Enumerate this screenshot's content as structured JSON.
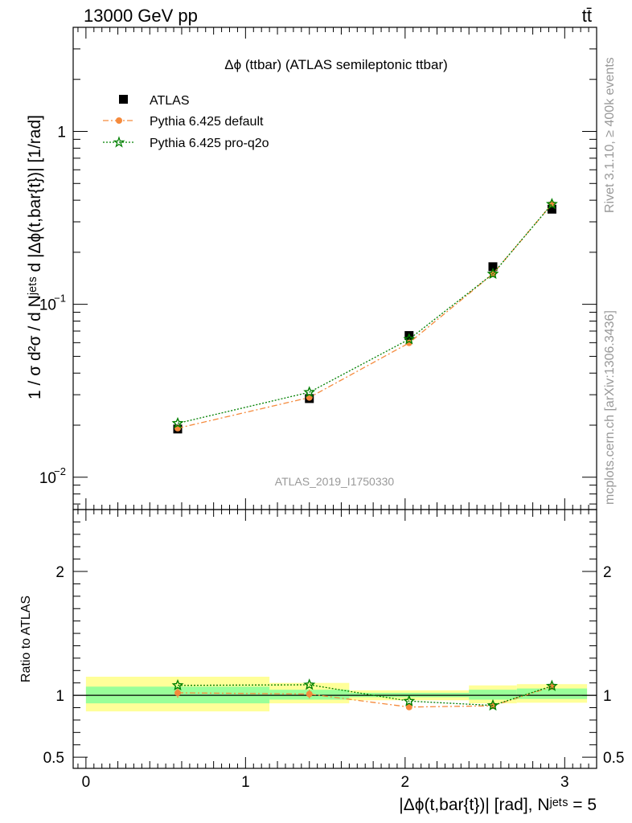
{
  "header": {
    "energy_label": "13000 GeV pp",
    "process_label": "tt̄"
  },
  "side_labels": {
    "rivet": "Rivet 3.1.10, ≥ 400k events",
    "mcplots": "mcplots.cern.ch [arXiv:1306.3436]"
  },
  "chart_data": [
    {
      "type": "scatter",
      "title": "Δϕ (ttbar) (ATLAS semileptonic ttbar)",
      "watermark": "ATLAS_2019_I1750330",
      "ylabel": "1 / σ d²σ / d Nʲᵉᵗˢ d |Δϕ(t,bar{t})| [1/rad]",
      "yscale": "log",
      "ylim": [
        0.0065,
        4.0
      ],
      "xlim": [
        -0.08,
        3.2
      ],
      "legend_position": "top-left",
      "x": [
        0.575,
        1.4,
        2.025,
        2.55,
        2.92
      ],
      "series": [
        {
          "name": "ATLAS",
          "marker": "square",
          "color": "#000000",
          "values": [
            0.019,
            0.0285,
            0.066,
            0.165,
            0.355
          ]
        },
        {
          "name": "Pythia 6.425 default",
          "marker": "circle",
          "color": "#f58a3c",
          "line": "dashdot",
          "values": [
            0.0192,
            0.0289,
            0.0598,
            0.15,
            0.38
          ]
        },
        {
          "name": "Pythia 6.425 pro-q2o",
          "marker": "star",
          "color": "#008000",
          "line": "dotted",
          "values": [
            0.0205,
            0.031,
            0.0628,
            0.15,
            0.38
          ]
        }
      ]
    },
    {
      "type": "line",
      "ylabel": "Ratio to ATLAS",
      "xlabel": "|Δϕ(t,bar{t})| [rad], Nʲᵉᵗˢ = 5",
      "ylim": [
        0.41,
        2.5
      ],
      "xlim": [
        -0.08,
        3.2
      ],
      "y_tick_labels": [
        "0.5",
        "1",
        "2"
      ],
      "x_tick_labels": [
        "0",
        "1",
        "2",
        "3"
      ],
      "reference_line": 1,
      "bands": [
        {
          "x": [
            0.0,
            1.15
          ],
          "inner": [
            0.935,
            1.07
          ],
          "outer": [
            0.87,
            1.15
          ]
        },
        {
          "x": [
            1.15,
            1.65
          ],
          "inner": [
            0.965,
            1.045
          ],
          "outer": [
            0.935,
            1.1
          ]
        },
        {
          "x": [
            1.65,
            2.4
          ],
          "inner": [
            0.985,
            1.02
          ],
          "outer": [
            0.96,
            1.04
          ]
        },
        {
          "x": [
            2.4,
            2.7
          ],
          "inner": [
            0.965,
            1.045
          ],
          "outer": [
            0.935,
            1.08
          ]
        },
        {
          "x": [
            2.7,
            3.14
          ],
          "inner": [
            0.97,
            1.055
          ],
          "outer": [
            0.94,
            1.09
          ]
        }
      ],
      "x": [
        0.575,
        1.4,
        2.025,
        2.55,
        2.92
      ],
      "series": [
        {
          "name": "Pythia 6.425 default",
          "color": "#f58a3c",
          "line": "dashdot",
          "marker": "circle",
          "values": [
            1.02,
            1.01,
            0.905,
            0.915,
            1.07
          ],
          "errors": [
            0.04,
            0.035,
            0.0,
            0.0,
            0.0
          ]
        },
        {
          "name": "Pythia 6.425 pro-q2o",
          "color": "#008000",
          "line": "dotted",
          "marker": "star",
          "values": [
            1.08,
            1.085,
            0.953,
            0.918,
            1.075
          ]
        }
      ]
    }
  ]
}
